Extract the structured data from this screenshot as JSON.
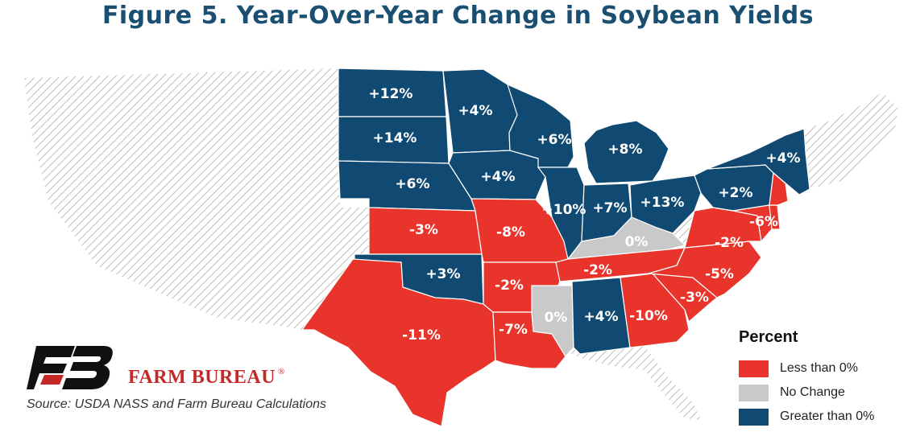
{
  "title": "Figure 5. Year-Over-Year Change in Soybean Yields",
  "legend": {
    "title": "Percent",
    "items": [
      {
        "label": "Less than 0%",
        "color": "#e8342a"
      },
      {
        "label": "No Change",
        "color": "#c9c9c9"
      },
      {
        "label": "Greater than 0%",
        "color": "#104a72"
      }
    ]
  },
  "colors": {
    "negative": "#e8342a",
    "no_change": "#c9c9c9",
    "positive": "#104a72",
    "hatch": "#bdbdbd",
    "state_border": "#ffffff",
    "title": "#1b4f72",
    "brand_red": "#c62828"
  },
  "states": [
    {
      "id": "ND",
      "label": "+12%",
      "category": "positive"
    },
    {
      "id": "SD",
      "label": "+14%",
      "category": "positive"
    },
    {
      "id": "NE",
      "label": "+6%",
      "category": "positive"
    },
    {
      "id": "KS",
      "label": "-3%",
      "category": "negative"
    },
    {
      "id": "OK",
      "label": "+3%",
      "category": "positive"
    },
    {
      "id": "TX",
      "label": "-11%",
      "category": "negative"
    },
    {
      "id": "MN",
      "label": "+4%",
      "category": "positive"
    },
    {
      "id": "IA",
      "label": "+4%",
      "category": "positive"
    },
    {
      "id": "MO",
      "label": "-8%",
      "category": "negative"
    },
    {
      "id": "AR",
      "label": "-2%",
      "category": "negative"
    },
    {
      "id": "LA",
      "label": "-7%",
      "category": "negative"
    },
    {
      "id": "WI",
      "label": "+6%",
      "category": "positive"
    },
    {
      "id": "IL",
      "label": "+10%",
      "category": "positive"
    },
    {
      "id": "MS",
      "label": "0%",
      "category": "no_change"
    },
    {
      "id": "MI",
      "label": "+8%",
      "category": "positive"
    },
    {
      "id": "IN",
      "label": "+7%",
      "category": "positive"
    },
    {
      "id": "OH",
      "label": "+13%",
      "category": "positive"
    },
    {
      "id": "KY",
      "label": "0%",
      "category": "no_change"
    },
    {
      "id": "TN",
      "label": "-2%",
      "category": "negative"
    },
    {
      "id": "AL",
      "label": "+4%",
      "category": "positive"
    },
    {
      "id": "GA",
      "label": "-10%",
      "category": "negative"
    },
    {
      "id": "SC",
      "label": "-3%",
      "category": "negative"
    },
    {
      "id": "NC",
      "label": "-5%",
      "category": "negative"
    },
    {
      "id": "VA",
      "label": "-2%",
      "category": "negative"
    },
    {
      "id": "PA",
      "label": "+2%",
      "category": "positive"
    },
    {
      "id": "NY",
      "label": "+4%",
      "category": "positive"
    },
    {
      "id": "MD",
      "label": "-6%",
      "category": "negative"
    },
    {
      "id": "DE",
      "label": "",
      "category": "negative"
    },
    {
      "id": "NJ",
      "label": "",
      "category": "negative"
    }
  ],
  "brand": {
    "name": "FARM BUREAU",
    "mark": "®"
  },
  "source": "Source: USDA NASS and Farm Bureau Calculations"
}
